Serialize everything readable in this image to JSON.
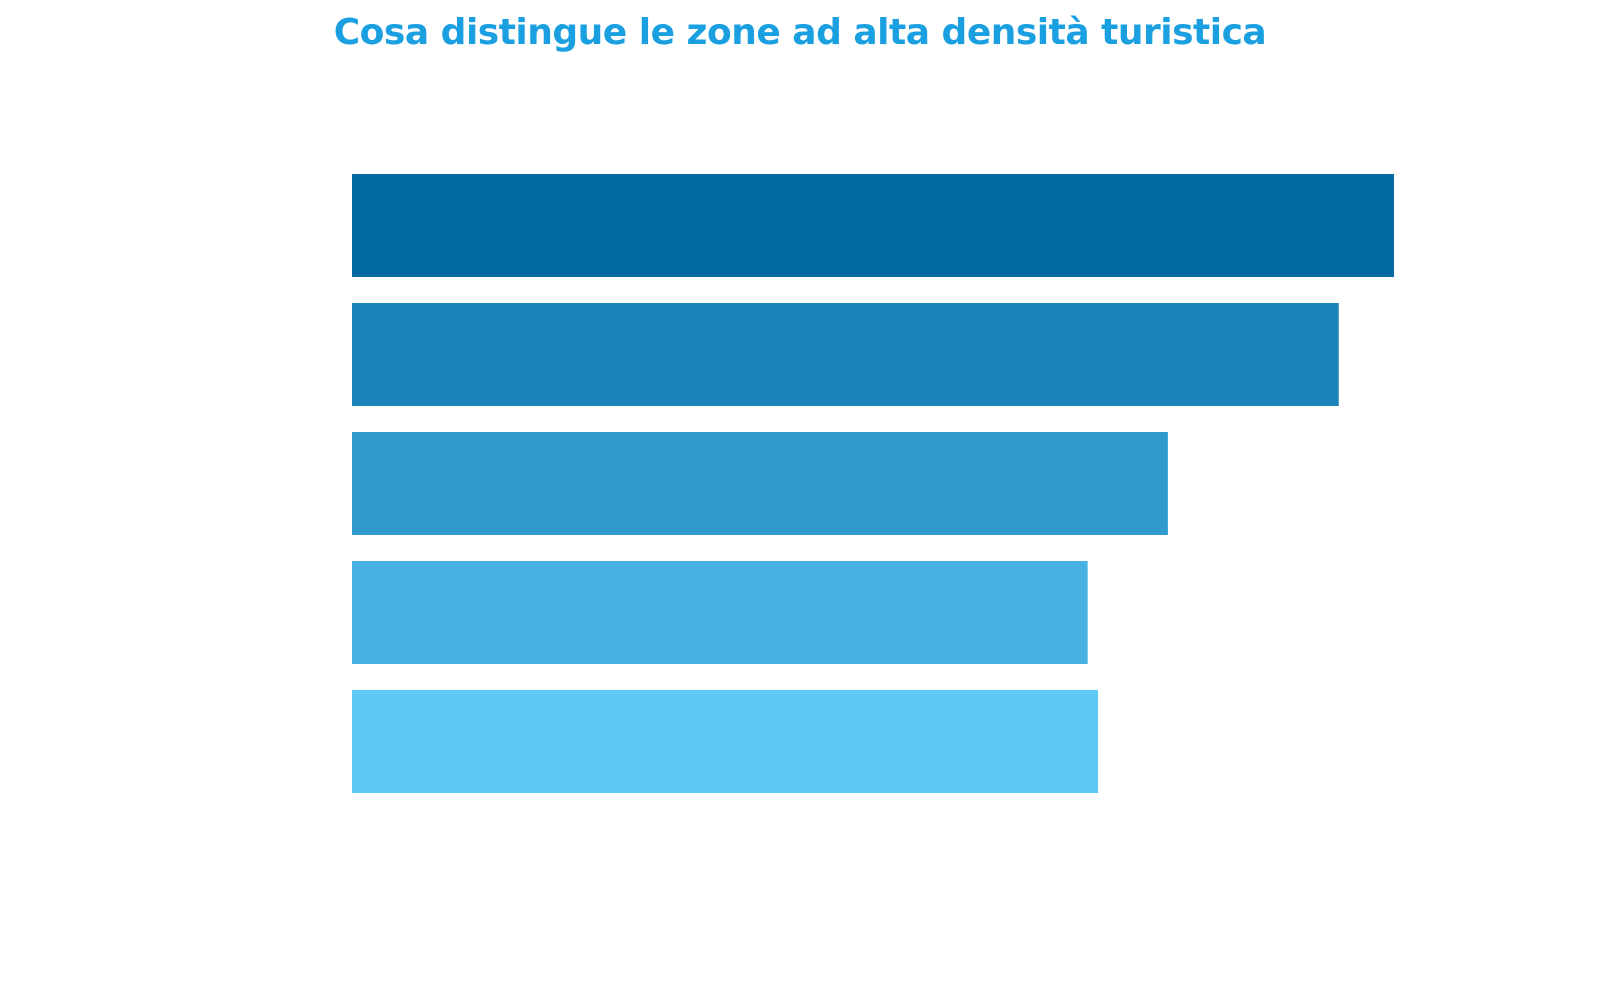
{
  "chart_data": {
    "type": "bar",
    "orientation": "horizontal",
    "title": "Cosa distingue le zone ad alta densità turistica",
    "xlabel": "",
    "ylabel": "",
    "categories": [
      "",
      "",
      "",
      "",
      ""
    ],
    "values": [
      100,
      94.7,
      78.3,
      70.6,
      71.6
    ],
    "xlim": [
      0,
      100
    ],
    "grid": false,
    "legend": "none",
    "colors": [
      "#026aa0",
      "#1a84b8",
      "#319bcd",
      "#49b1e2",
      "#60c8f7"
    ]
  },
  "style": {
    "title_color": "#1a9fe0"
  }
}
